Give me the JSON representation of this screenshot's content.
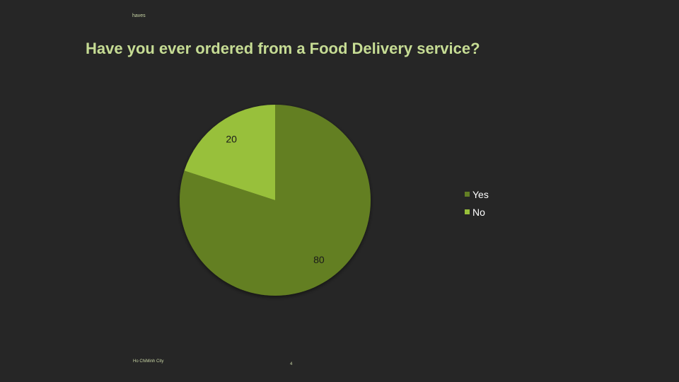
{
  "header": {
    "tag": "haves"
  },
  "title": "Have you ever ordered from a Food Delivery service?",
  "chart_data": {
    "type": "pie",
    "categories": [
      "Yes",
      "No"
    ],
    "values": [
      80,
      20
    ],
    "data_labels": [
      "80",
      "20"
    ],
    "colors": [
      "#637f24",
      "#98c03a"
    ],
    "legend_position": "right",
    "start_angle": "12 o'clock, clockwise"
  },
  "footer": {
    "city": "Ho ChiMinh City",
    "page": "4"
  }
}
